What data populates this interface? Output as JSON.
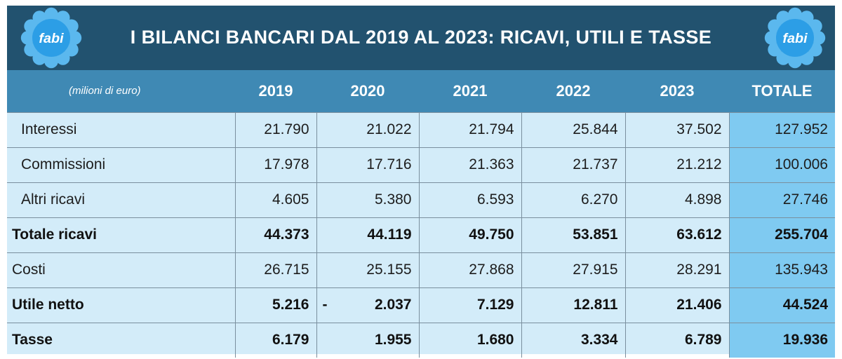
{
  "title": "I BILANCI BANCARI DAL 2019 AL 2023: RICAVI, UTILI E TASSE",
  "logo_text": "fabi",
  "colors": {
    "header_bg": "#22526f",
    "column_header_bg": "#3f89b4",
    "body_bg": "#d3ecf9",
    "total_column_bg": "#7fcaf1",
    "logo_petal": "#5bb8ee",
    "logo_center": "#2c9ee6"
  },
  "table": {
    "units_label": "(milioni di euro)",
    "columns": [
      "2019",
      "2020",
      "2021",
      "2022",
      "2023",
      "TOTALE"
    ],
    "rows": [
      {
        "label": "Interessi",
        "values": [
          "21.790",
          "21.022",
          "21.794",
          "25.844",
          "37.502",
          "127.952"
        ]
      },
      {
        "label": "Commissioni",
        "values": [
          "17.978",
          "17.716",
          "21.363",
          "21.737",
          "21.212",
          "100.006"
        ]
      },
      {
        "label": "Altri ricavi",
        "values": [
          "4.605",
          "5.380",
          "6.593",
          "6.270",
          "4.898",
          "27.746"
        ]
      },
      {
        "label": "Totale ricavi",
        "values": [
          "44.373",
          "44.119",
          "49.750",
          "53.851",
          "63.612",
          "255.704"
        ]
      },
      {
        "label": "Costi",
        "values": [
          "26.715",
          "25.155",
          "27.868",
          "27.915",
          "28.291",
          "135.943"
        ]
      },
      {
        "label": "Utile netto",
        "values": [
          "5.216",
          "2.037",
          "7.129",
          "12.811",
          "21.406",
          "44.524"
        ],
        "sign_2020": "-"
      },
      {
        "label": "Tasse",
        "values": [
          "6.179",
          "1.955",
          "1.680",
          "3.334",
          "6.789",
          "19.936"
        ]
      }
    ]
  }
}
